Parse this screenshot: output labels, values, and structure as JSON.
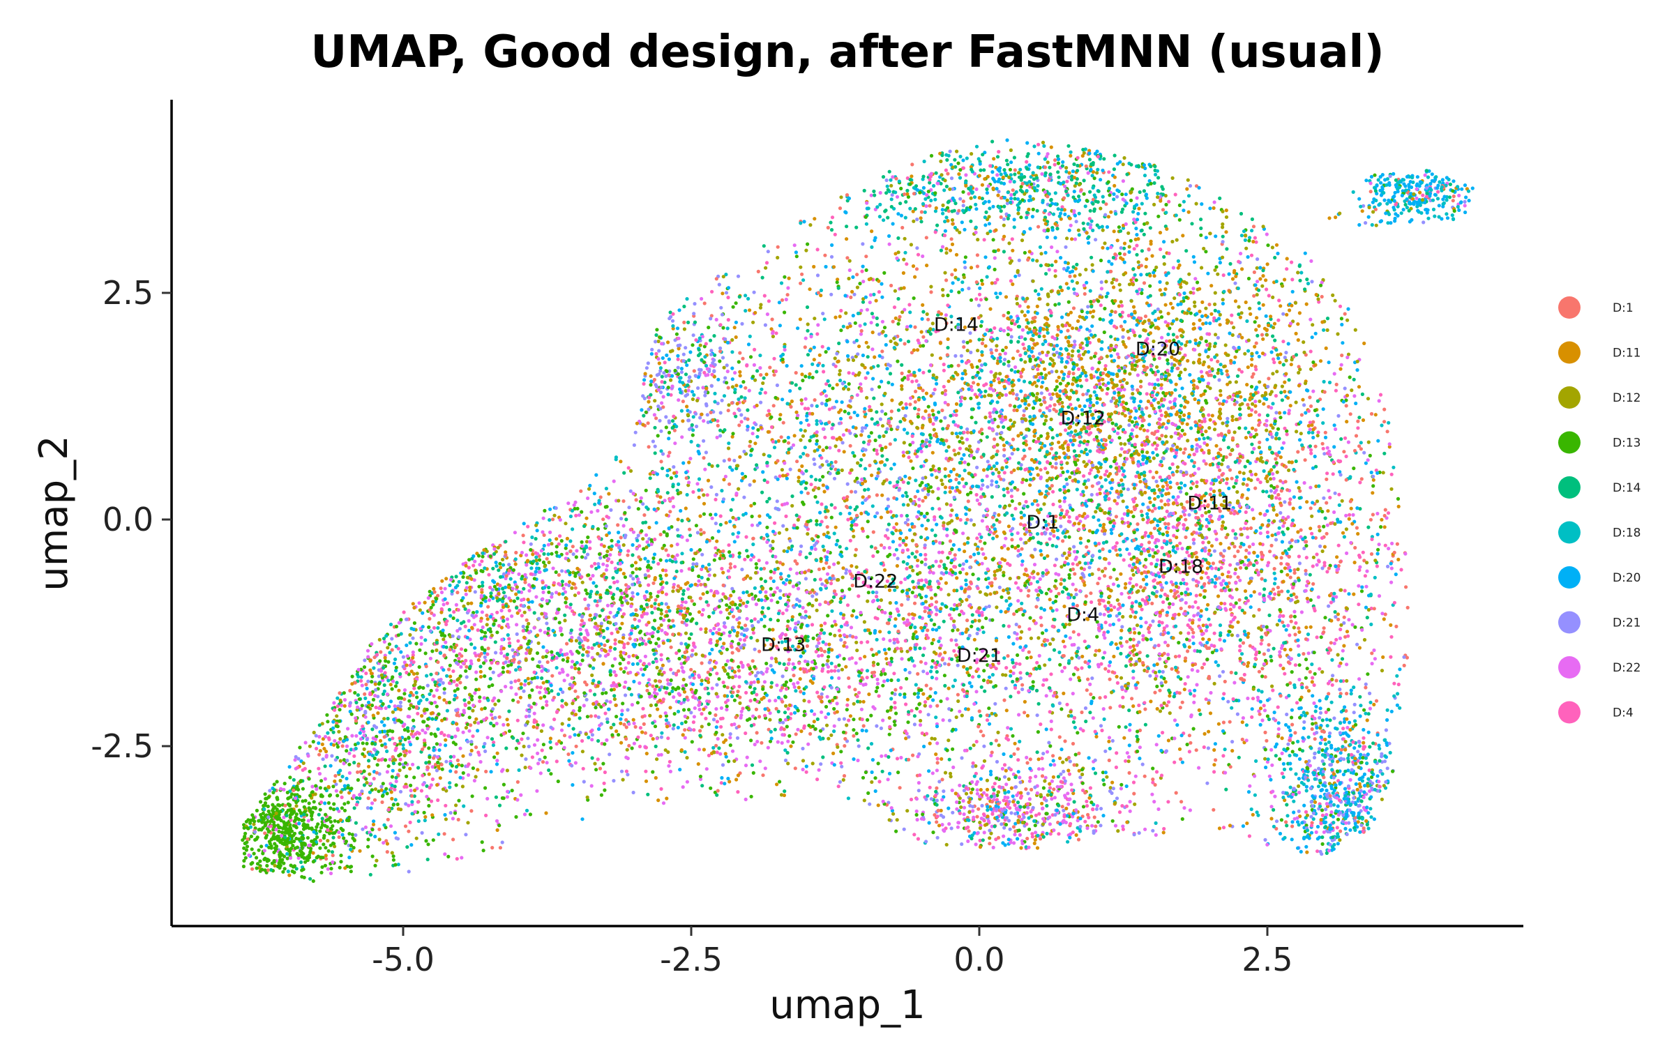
{
  "chart_data": {
    "type": "scatter",
    "title": "UMAP, Good design, after FastMNN (usual)",
    "xlabel": "umap_1",
    "ylabel": "umap_2",
    "xlim": [
      -7.0,
      6.0
    ],
    "ylim": [
      -4.5,
      4.6
    ],
    "x_ticks": [
      -5.0,
      -2.5,
      0.0,
      2.5
    ],
    "x_tick_labels": [
      "-5.0",
      "-2.5",
      "0.0",
      "2.5"
    ],
    "y_ticks": [
      -2.5,
      0.0,
      2.5
    ],
    "y_tick_labels": [
      "-2.5",
      "0.0",
      "2.5"
    ],
    "grid": false,
    "legend_position": "right",
    "series": [
      {
        "name": "D:1",
        "color": "#F8766D"
      },
      {
        "name": "D:11",
        "color": "#D89000"
      },
      {
        "name": "D:12",
        "color": "#A3A500"
      },
      {
        "name": "D:13",
        "color": "#39B600"
      },
      {
        "name": "D:14",
        "color": "#00BF7D"
      },
      {
        "name": "D:18",
        "color": "#00BFC4"
      },
      {
        "name": "D:20",
        "color": "#00B0F6"
      },
      {
        "name": "D:21",
        "color": "#9590FF"
      },
      {
        "name": "D:22",
        "color": "#E76BF3"
      },
      {
        "name": "D:4",
        "color": "#FF62BC"
      }
    ],
    "cluster_labels": [
      {
        "text": "D:14",
        "x": -0.2,
        "y": 2.15
      },
      {
        "text": "D:20",
        "x": 1.55,
        "y": 1.88
      },
      {
        "text": "D:12",
        "x": 0.9,
        "y": 1.12
      },
      {
        "text": "D:11",
        "x": 2.0,
        "y": 0.18
      },
      {
        "text": "D:1",
        "x": 0.55,
        "y": -0.03
      },
      {
        "text": "D:18",
        "x": 1.75,
        "y": -0.52
      },
      {
        "text": "D:22",
        "x": -0.9,
        "y": -0.68
      },
      {
        "text": "D:4",
        "x": 0.9,
        "y": -1.05
      },
      {
        "text": "D:13",
        "x": -1.7,
        "y": -1.38
      },
      {
        "text": "D:21",
        "x": 0.0,
        "y": -1.5
      }
    ],
    "point_regions": [
      {
        "cx": -0.5,
        "cy": 0.3,
        "sx": 2.0,
        "sy": 1.6,
        "w": 0.3,
        "mix": [
          1,
          1,
          1,
          1,
          1,
          1,
          1,
          1,
          1,
          1
        ]
      },
      {
        "cx": 1.3,
        "cy": 1.6,
        "sx": 1.1,
        "sy": 1.0,
        "w": 0.14,
        "mix": [
          1,
          4,
          4,
          1,
          1,
          1,
          2,
          0.5,
          0.5,
          1
        ]
      },
      {
        "cx": 2.0,
        "cy": -0.6,
        "sx": 1.0,
        "sy": 1.1,
        "w": 0.12,
        "mix": [
          3,
          2,
          1,
          1,
          0.5,
          0.5,
          1,
          0.5,
          2,
          3
        ]
      },
      {
        "cx": -2.7,
        "cy": -1.6,
        "sx": 1.6,
        "sy": 0.7,
        "w": 0.14,
        "mix": [
          1,
          1,
          1,
          3,
          0.5,
          0.5,
          0.5,
          1,
          3,
          2
        ]
      },
      {
        "cx": -5.2,
        "cy": -2.4,
        "sx": 0.55,
        "sy": 0.75,
        "w": 0.07,
        "mix": [
          1,
          1,
          1,
          3,
          1,
          1,
          1,
          1,
          2,
          1
        ]
      },
      {
        "cx": -6.05,
        "cy": -3.45,
        "sx": 0.28,
        "sy": 0.3,
        "w": 0.04,
        "mix": [
          0.2,
          0.2,
          0.2,
          8,
          0.2,
          0.2,
          0.2,
          0.2,
          0.3,
          0.2
        ]
      },
      {
        "cx": 0.3,
        "cy": 3.7,
        "sx": 1.0,
        "sy": 0.3,
        "w": 0.05,
        "mix": [
          0.5,
          1,
          1,
          1,
          4,
          3,
          2,
          0.5,
          0.5,
          0.5
        ]
      },
      {
        "cx": -2.6,
        "cy": 1.6,
        "sx": 0.3,
        "sy": 0.4,
        "w": 0.02,
        "mix": [
          0.5,
          0.5,
          0.5,
          1,
          1,
          1,
          1,
          5,
          1,
          0.5
        ]
      },
      {
        "cx": 3.1,
        "cy": -3.0,
        "sx": 0.3,
        "sy": 0.5,
        "w": 0.05,
        "mix": [
          0.5,
          0.5,
          0.5,
          1,
          1,
          3,
          4,
          3,
          1,
          0.5
        ]
      },
      {
        "cx": 3.8,
        "cy": 3.6,
        "sx": 0.3,
        "sy": 0.18,
        "w": 0.02,
        "mix": [
          0.3,
          0.5,
          0.5,
          0.5,
          1,
          3,
          5,
          0.5,
          0.3,
          0.3
        ]
      },
      {
        "cx": 0.3,
        "cy": -3.2,
        "sx": 0.5,
        "sy": 0.3,
        "w": 0.04,
        "mix": [
          1,
          1,
          1,
          1,
          0.5,
          0.5,
          1,
          2,
          3,
          2
        ]
      },
      {
        "cx": -4.0,
        "cy": -0.6,
        "sx": 0.8,
        "sy": 0.5,
        "w": 0.05,
        "mix": [
          1,
          1,
          1,
          2,
          1.5,
          1.5,
          1,
          1,
          2,
          1
        ]
      }
    ],
    "point_count": 15000
  }
}
